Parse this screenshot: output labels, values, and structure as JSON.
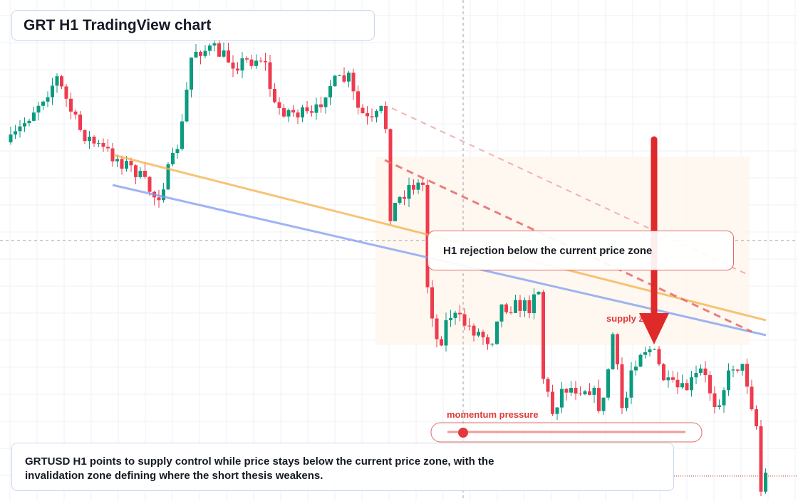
{
  "header": {
    "title": "GRT H1 TradingView chart"
  },
  "annotations": {
    "rejection": "H1 rejection below the current price zone",
    "supply": "supply zone",
    "momentum": "momentum pressure"
  },
  "caption": "GRTUSD H1 points to supply control while price stays below the current price zone, with the invalidation zone defining where the short thesis weakens."
}
